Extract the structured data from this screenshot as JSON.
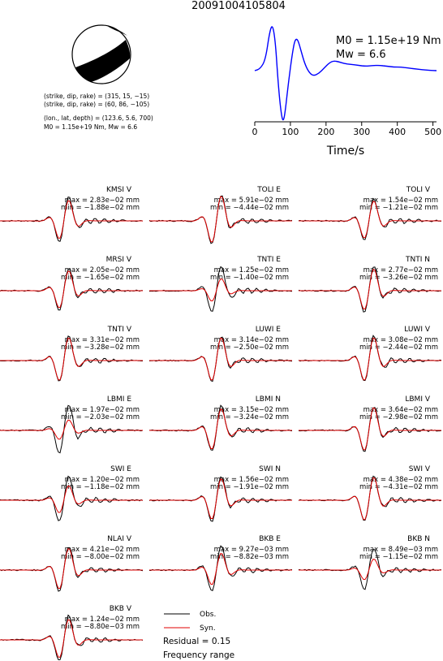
{
  "event_id": "20091004105804",
  "focal_mechanism": {
    "planes": [
      "(strike, dip, rake) = (315, 15, −15)",
      "(strike, dip, rake) = (60, 86, −105)"
    ],
    "location": "(lon., lat, depth) = (123.6, 5.6, 700)",
    "moment_line": "M0 = 1.15e+19 Nm, Mw = 6.6"
  },
  "stf": {
    "m0_label": "M0 = 1.15e+19 Nm",
    "mw_label": "Mw = 6.6",
    "xlabel": "Time/s"
  },
  "legend": {
    "obs": "Obs.",
    "syn": "Syn."
  },
  "residual": "Residual = 0.15",
  "frequency": "Frequency range",
  "colors": {
    "observed": "#000000",
    "synthetic": "#e00000"
  },
  "chart_data": [
    {
      "type": "line",
      "title": "",
      "xlabel": "Time/s",
      "xlim": [
        0,
        510
      ],
      "xticks": [
        0,
        100,
        200,
        300,
        400,
        500
      ],
      "grid": false,
      "series": [
        {
          "values": [
            [
              0,
              0.0
            ],
            [
              15,
              0.1
            ],
            [
              30,
              0.6
            ],
            [
              42,
              2.2
            ],
            [
              50,
              2.6
            ],
            [
              58,
              1.6
            ],
            [
              66,
              -0.8
            ],
            [
              74,
              -2.4
            ],
            [
              80,
              -2.9
            ],
            [
              86,
              -2.2
            ],
            [
              95,
              -0.6
            ],
            [
              105,
              0.9
            ],
            [
              112,
              1.7
            ],
            [
              120,
              1.8
            ],
            [
              130,
              1.1
            ],
            [
              140,
              0.4
            ],
            [
              152,
              -0.1
            ],
            [
              165,
              -0.3
            ],
            [
              180,
              -0.15
            ],
            [
              195,
              0.15
            ],
            [
              210,
              0.45
            ],
            [
              222,
              0.55
            ],
            [
              235,
              0.5
            ],
            [
              250,
              0.4
            ],
            [
              270,
              0.35
            ],
            [
              290,
              0.3
            ],
            [
              310,
              0.25
            ],
            [
              330,
              0.28
            ],
            [
              350,
              0.3
            ],
            [
              370,
              0.25
            ],
            [
              390,
              0.2
            ],
            [
              410,
              0.2
            ],
            [
              430,
              0.15
            ],
            [
              450,
              0.1
            ],
            [
              470,
              0.05
            ],
            [
              490,
              0.02
            ],
            [
              510,
              0.0
            ]
          ]
        }
      ]
    },
    {
      "type": "line",
      "title": "",
      "panels": [
        {
          "station": "KMSI V",
          "max": "max = 2.83e−02 mm",
          "min": "min = −1.88e−02 mm",
          "amp": 1.2,
          "syn_ratio": 0.85
        },
        {
          "station": "TOLI E",
          "max": "max = 5.91e−02 mm",
          "min": "min = −4.44e−02 mm",
          "amp": 1.3,
          "syn_ratio": 0.95
        },
        {
          "station": "TOLI V",
          "max": "max = 1.54e−02 mm",
          "min": "min = −1.21e−02 mm",
          "amp": 1.1,
          "syn_ratio": 0.9
        },
        {
          "station": "MRSI V",
          "max": "max = 2.05e−02 mm",
          "min": "min = −1.65e−02 mm",
          "amp": 1.1,
          "syn_ratio": 0.9
        },
        {
          "station": "TNTI E",
          "max": "max = 1.25e−02 mm",
          "min": "min = −1.40e−02 mm",
          "amp": 1.2,
          "syn_ratio": 0.5
        },
        {
          "station": "TNTI N",
          "max": "max = 2.77e−02 mm",
          "min": "min = −3.26e−02 mm",
          "amp": 1.2,
          "syn_ratio": 0.9
        },
        {
          "station": "TNTI V",
          "max": "max = 3.31e−02 mm",
          "min": "min = −3.28e−02 mm",
          "amp": 1.2,
          "syn_ratio": 0.95
        },
        {
          "station": "LUWI E",
          "max": "max = 3.14e−02 mm",
          "min": "min = −2.50e−02 mm",
          "amp": 1.2,
          "syn_ratio": 0.95
        },
        {
          "station": "LUWI V",
          "max": "max = 3.08e−02 mm",
          "min": "min = −2.44e−02 mm",
          "amp": 1.2,
          "syn_ratio": 0.95
        },
        {
          "station": "LBMI E",
          "max": "max = 1.97e−02 mm",
          "min": "min = −2.03e−02 mm",
          "amp": 1.3,
          "syn_ratio": 0.4
        },
        {
          "station": "LBMI N",
          "max": "max = 3.15e−02 mm",
          "min": "min = −3.24e−02 mm",
          "amp": 1.2,
          "syn_ratio": 0.9
        },
        {
          "station": "LBMI V",
          "max": "max = 3.64e−02 mm",
          "min": "min = −2.98e−02 mm",
          "amp": 1.2,
          "syn_ratio": 0.95
        },
        {
          "station": "SWI E",
          "max": "max = 1.20e−02 mm",
          "min": "min = −1.18e−02 mm",
          "amp": 1.2,
          "syn_ratio": 0.6
        },
        {
          "station": "SWI N",
          "max": "max = 1.56e−02 mm",
          "min": "min = −1.91e−02 mm",
          "amp": 1.2,
          "syn_ratio": 0.9
        },
        {
          "station": "SWI V",
          "max": "max = 4.38e−02 mm",
          "min": "min = −4.31e−02 mm",
          "amp": 1.2,
          "syn_ratio": 0.95
        },
        {
          "station": "NLAI V",
          "max": "max = 4.21e−02 mm",
          "min": "min = −8.00e−02 mm",
          "amp": 1.2,
          "syn_ratio": 0.9
        },
        {
          "station": "BKB E",
          "max": "max = 9.27e−03 mm",
          "min": "min = −8.82e−03 mm",
          "amp": 1.2,
          "syn_ratio": 0.7
        },
        {
          "station": "BKB N",
          "max": "max = 8.49e−03 mm",
          "min": "min = −1.15e−02 mm",
          "amp": 1.1,
          "syn_ratio": 0.5
        },
        {
          "station": "BKB V",
          "max": "max = 1.24e−02 mm",
          "min": "min = −8.80e−03 mm",
          "amp": 1.2,
          "syn_ratio": 0.85
        }
      ]
    }
  ]
}
